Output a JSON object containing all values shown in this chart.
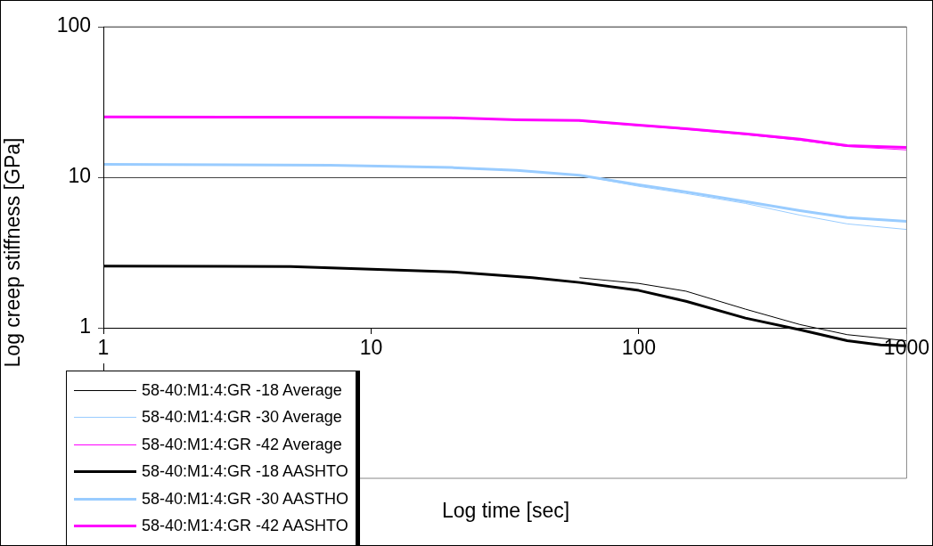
{
  "chart_data": {
    "type": "line",
    "xlabel": "Log time [sec]",
    "ylabel": "Log creep stiffness [GPa]",
    "log": "xy",
    "xlim": [
      1,
      1000
    ],
    "xticks": [
      1,
      10,
      100,
      1000
    ],
    "ylim": [
      0.1,
      100
    ],
    "yticks": [
      1,
      10,
      100
    ],
    "grid": "y",
    "legend": "bottom left",
    "marker": "none",
    "line_style": "solid",
    "series": [
      {
        "name": "58-40:M1:4:GR -18 Average",
        "color": "#000000",
        "x": [
          60,
          100,
          150,
          250,
          400,
          600,
          1000
        ],
        "values": [
          2.15,
          1.97,
          1.75,
          1.33,
          1.05,
          0.9,
          0.82
        ]
      },
      {
        "name": "58-40:M1:4:GR -30 Average",
        "color": "#99ccff",
        "x": [
          60,
          100,
          150,
          250,
          400,
          600,
          1000
        ],
        "values": [
          10.3,
          8.7,
          7.8,
          6.7,
          5.6,
          4.9,
          4.5
        ]
      },
      {
        "name": "58-40:M1:4:GR -42 Average",
        "color": "#ff00ff",
        "x": [
          60,
          100,
          150,
          250,
          400,
          600,
          1000
        ],
        "values": [
          23.6,
          22.0,
          20.8,
          19.2,
          17.6,
          16.0,
          15.2
        ]
      },
      {
        "name": "58-40:M1:4:GR -18 AASHTO",
        "color": "#000000",
        "x": [
          1,
          5,
          10,
          20,
          40,
          60,
          100,
          150,
          250,
          400,
          600,
          800,
          1000
        ],
        "values": [
          2.57,
          2.55,
          2.45,
          2.35,
          2.15,
          2.0,
          1.77,
          1.5,
          1.16,
          0.97,
          0.82,
          0.77,
          0.76
        ]
      },
      {
        "name": "58-40:M1:4:GR -30 AASTHO",
        "color": "#99ccff",
        "x": [
          1,
          7,
          20,
          35,
          60,
          100,
          150,
          250,
          400,
          600,
          1000
        ],
        "values": [
          12.2,
          12.0,
          11.6,
          11.1,
          10.3,
          8.9,
          8.0,
          6.9,
          6.0,
          5.4,
          5.1
        ]
      },
      {
        "name": "58-40:M1:4:GR -42 AASHTO",
        "color": "#ff00ff",
        "x": [
          1,
          10,
          20,
          35,
          60,
          100,
          150,
          250,
          400,
          600,
          1000
        ],
        "values": [
          25.2,
          25.0,
          24.8,
          24.1,
          23.8,
          22.2,
          21.0,
          19.4,
          17.9,
          16.2,
          15.8
        ]
      }
    ]
  }
}
